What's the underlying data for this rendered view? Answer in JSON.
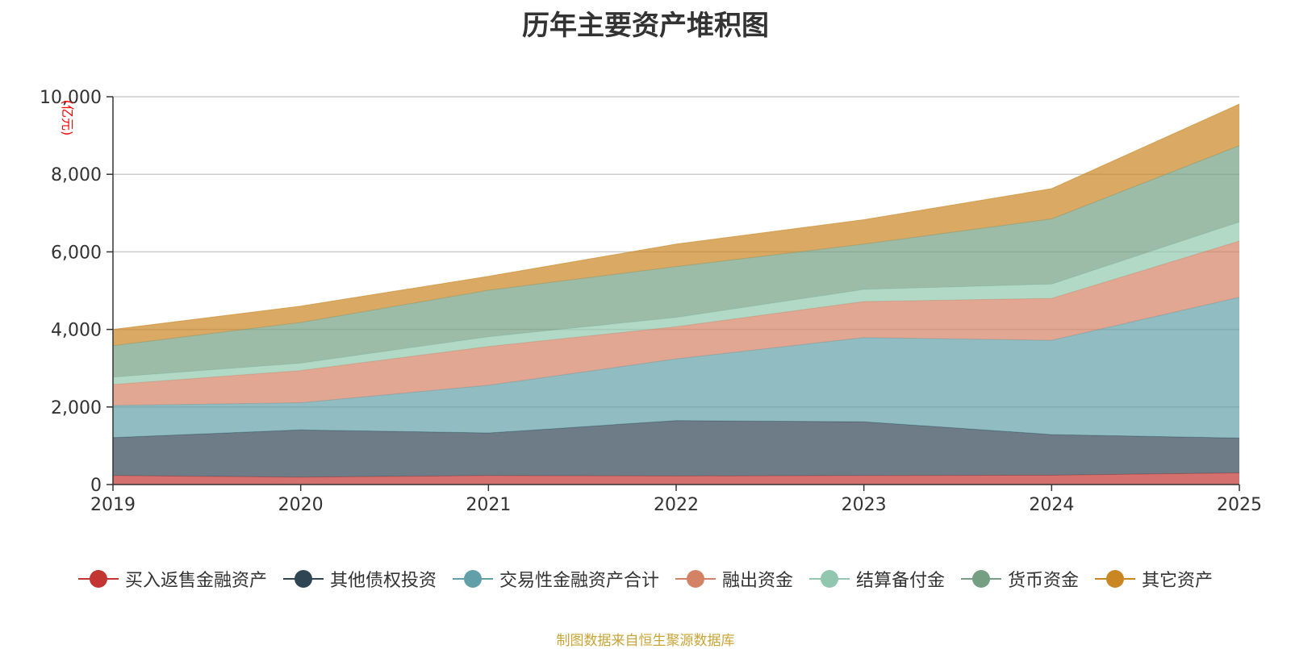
{
  "chart_data": {
    "type": "area",
    "stacked": true,
    "title": "历年主要资产堆积图",
    "unit_label": "(亿元)",
    "x": [
      "2019",
      "2020",
      "2021",
      "2022",
      "2023",
      "2024",
      "2025"
    ],
    "ylim": [
      0,
      10000
    ],
    "yticks": [
      0,
      2000,
      4000,
      6000,
      8000,
      10000
    ],
    "ytick_labels": [
      "0",
      "2,000",
      "4,000",
      "6,000",
      "8,000",
      "10,000"
    ],
    "grid": true,
    "legend_position": "bottom",
    "series": [
      {
        "name": "买入返售金融资产",
        "color": "#c23531",
        "values": [
          230,
          190,
          230,
          220,
          230,
          240,
          300
        ]
      },
      {
        "name": "其他债权投资",
        "color": "#2f4554",
        "values": [
          980,
          1220,
          1100,
          1430,
          1390,
          1050,
          900
        ]
      },
      {
        "name": "交易性金融资产合计",
        "color": "#61a0a8",
        "values": [
          830,
          700,
          1230,
          1590,
          2170,
          2430,
          3630
        ]
      },
      {
        "name": "融出资金",
        "color": "#d48265",
        "values": [
          540,
          830,
          1000,
          830,
          930,
          1080,
          1450
        ]
      },
      {
        "name": "结算备付金",
        "color": "#91c7ae",
        "values": [
          190,
          190,
          250,
          240,
          310,
          370,
          490
        ]
      },
      {
        "name": "货币资金",
        "color": "#749f83",
        "values": [
          810,
          1050,
          1200,
          1310,
          1170,
          1680,
          1970
        ]
      },
      {
        "name": "其它资产",
        "color": "#ca8622",
        "values": [
          420,
          420,
          360,
          580,
          630,
          780,
          1070
        ]
      }
    ]
  },
  "source_note": "制图数据来自恒生聚源数据库"
}
